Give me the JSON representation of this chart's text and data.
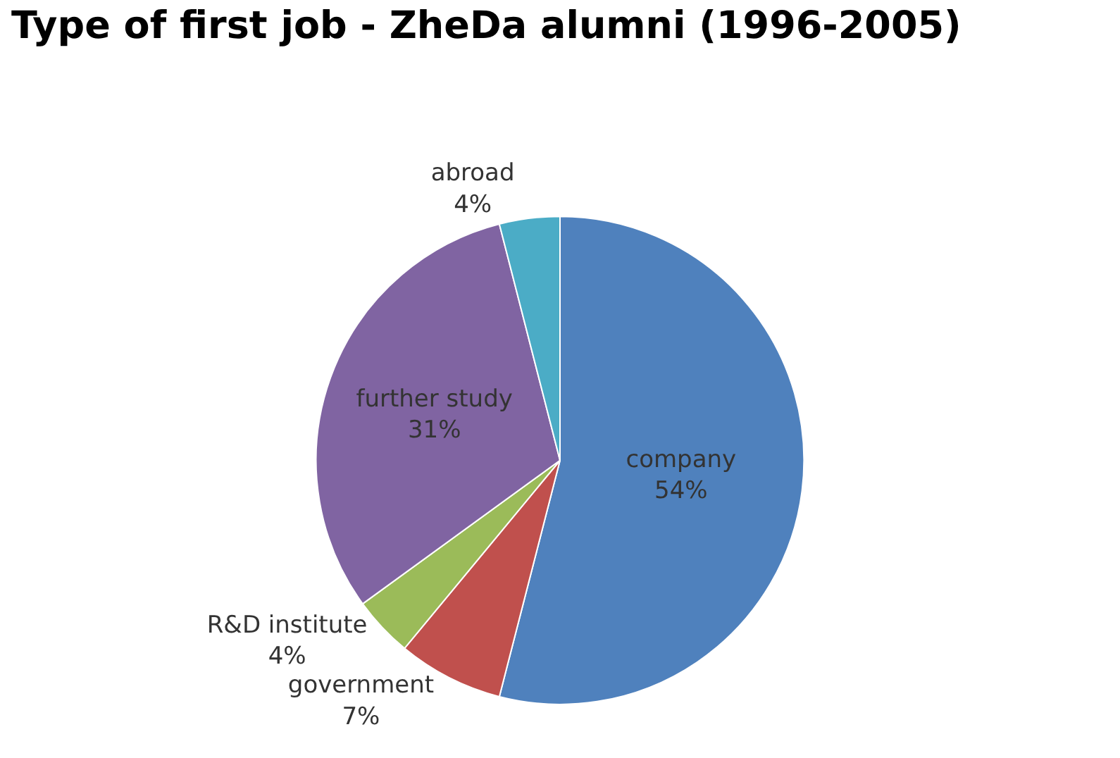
{
  "chart_data": {
    "type": "pie",
    "title": "Type of first job - ZheDa alumni (1996-2005)",
    "categories": [
      "company",
      "government",
      "R&D institute",
      "further study",
      "abroad"
    ],
    "values": [
      54,
      7,
      4,
      31,
      4
    ],
    "value_labels": [
      "54%",
      "7%",
      "4%",
      "31%",
      "4%"
    ],
    "colors": [
      "#4f81bd",
      "#c0504d",
      "#9bbb59",
      "#8064a2",
      "#4bacc6"
    ],
    "legend": false
  }
}
